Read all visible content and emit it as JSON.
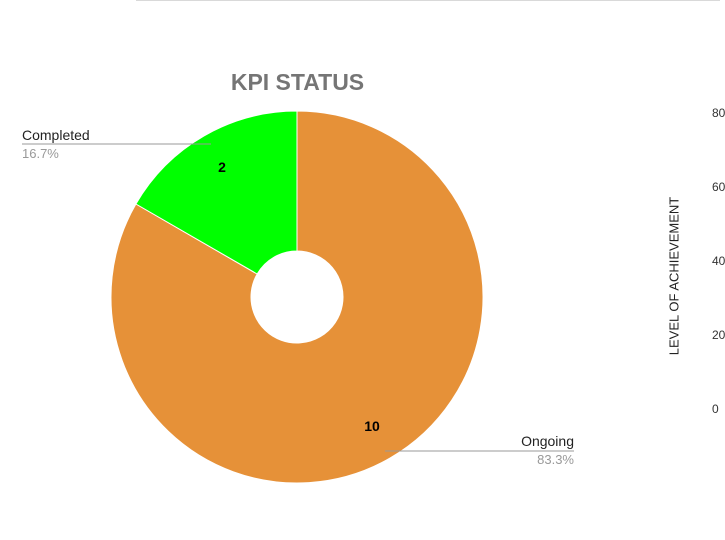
{
  "chart_data": {
    "type": "pie",
    "donut": true,
    "title": "KPI STATUS",
    "slices": [
      {
        "label": "Completed",
        "value": 2,
        "percent": "16.7%",
        "color": "#00ff00"
      },
      {
        "label": "Ongoing",
        "value": 10,
        "percent": "83.3%",
        "color": "#e69138"
      }
    ],
    "legend": "callout labels"
  },
  "partial_chart": {
    "ylabel": "LEVEL OF ACHIEVEMENT",
    "ticks": [
      "80",
      "60",
      "40",
      "20",
      "0"
    ]
  }
}
